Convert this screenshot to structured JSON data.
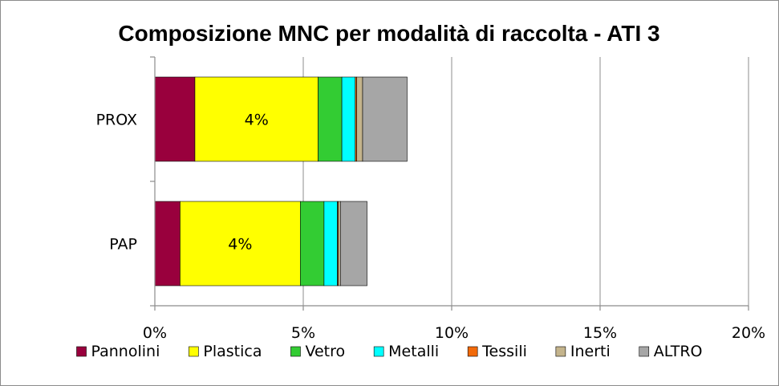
{
  "chart_data": {
    "type": "bar",
    "orientation": "horizontal",
    "stacked": true,
    "title": "Composizione MNC per modalità di raccolta - ATI 3",
    "xlabel": "",
    "ylabel": "",
    "categories": [
      "PROX",
      "PAP"
    ],
    "x_ticks": [
      "0%",
      "5%",
      "10%",
      "15%",
      "20%"
    ],
    "xlim": [
      0,
      20
    ],
    "grid": true,
    "legend_position": "bottom",
    "series": [
      {
        "name": "Pannolini",
        "color": "#99003d",
        "values": [
          1.35,
          0.85
        ]
      },
      {
        "name": "Plastica",
        "color": "#ffff00",
        "values": [
          4.15,
          4.05
        ],
        "data_labels": [
          "4%",
          "4%"
        ]
      },
      {
        "name": "Vetro",
        "color": "#33cc33",
        "values": [
          0.8,
          0.8
        ]
      },
      {
        "name": "Metalli",
        "color": "#00ffff",
        "values": [
          0.45,
          0.45
        ]
      },
      {
        "name": "Tessili",
        "color": "#f26a0a",
        "values": [
          0.05,
          0.03
        ]
      },
      {
        "name": "Inerti",
        "color": "#c4b48c",
        "values": [
          0.2,
          0.07
        ]
      },
      {
        "name": "ALTRO",
        "color": "#a6a6a6",
        "values": [
          1.5,
          0.9
        ]
      }
    ]
  }
}
